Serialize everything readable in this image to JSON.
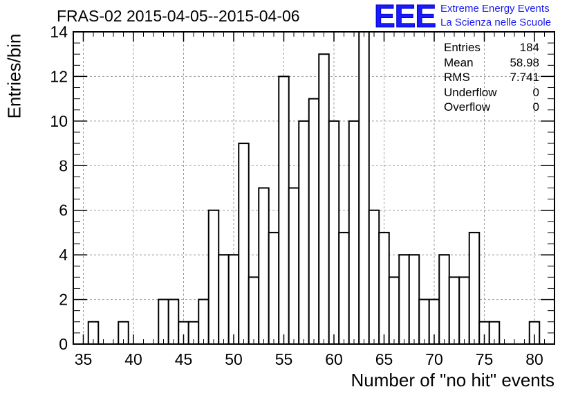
{
  "title": "FRAS-02 2015-04-05--2015-04-06",
  "logo": {
    "mark": "EEE",
    "line1": "Extreme Energy Events",
    "line2": "La Scienza nelle Scuole",
    "color": "#1a1aff"
  },
  "stats": [
    {
      "label": "Entries",
      "value": "184"
    },
    {
      "label": "Mean",
      "value": "58.98"
    },
    {
      "label": "RMS",
      "value": "7.741"
    },
    {
      "label": "Underflow",
      "value": "0"
    },
    {
      "label": "Overflow",
      "value": "0"
    }
  ],
  "chart_data": {
    "type": "bar",
    "title": "FRAS-02 2015-04-05--2015-04-06",
    "xlabel": "Number of \"no hit\" events",
    "ylabel": "Entries/bin",
    "xlim": [
      34,
      82
    ],
    "ylim": [
      0,
      14
    ],
    "bin_width": 1,
    "xticks": [
      35,
      40,
      45,
      50,
      55,
      60,
      65,
      70,
      75,
      80
    ],
    "yticks": [
      0,
      2,
      4,
      6,
      8,
      10,
      12,
      14
    ],
    "grid": true,
    "bar_color": "#000000",
    "bars": [
      {
        "x": 36,
        "value": 1
      },
      {
        "x": 39,
        "value": 1
      },
      {
        "x": 43,
        "value": 2
      },
      {
        "x": 44,
        "value": 2
      },
      {
        "x": 45,
        "value": 1
      },
      {
        "x": 46,
        "value": 1
      },
      {
        "x": 47,
        "value": 2
      },
      {
        "x": 48,
        "value": 6
      },
      {
        "x": 49,
        "value": 4
      },
      {
        "x": 50,
        "value": 4
      },
      {
        "x": 51,
        "value": 9
      },
      {
        "x": 52,
        "value": 3
      },
      {
        "x": 53,
        "value": 7
      },
      {
        "x": 54,
        "value": 5
      },
      {
        "x": 55,
        "value": 12
      },
      {
        "x": 56,
        "value": 7
      },
      {
        "x": 57,
        "value": 10
      },
      {
        "x": 58,
        "value": 11
      },
      {
        "x": 59,
        "value": 13
      },
      {
        "x": 60,
        "value": 10
      },
      {
        "x": 61,
        "value": 5
      },
      {
        "x": 62,
        "value": 10
      },
      {
        "x": 63,
        "value": 14
      },
      {
        "x": 64,
        "value": 6
      },
      {
        "x": 65,
        "value": 5
      },
      {
        "x": 66,
        "value": 3
      },
      {
        "x": 67,
        "value": 4
      },
      {
        "x": 68,
        "value": 4
      },
      {
        "x": 69,
        "value": 2
      },
      {
        "x": 70,
        "value": 2
      },
      {
        "x": 71,
        "value": 4
      },
      {
        "x": 72,
        "value": 3
      },
      {
        "x": 73,
        "value": 3
      },
      {
        "x": 74,
        "value": 5
      },
      {
        "x": 75,
        "value": 1
      },
      {
        "x": 76,
        "value": 1
      },
      {
        "x": 80,
        "value": 1
      }
    ]
  }
}
